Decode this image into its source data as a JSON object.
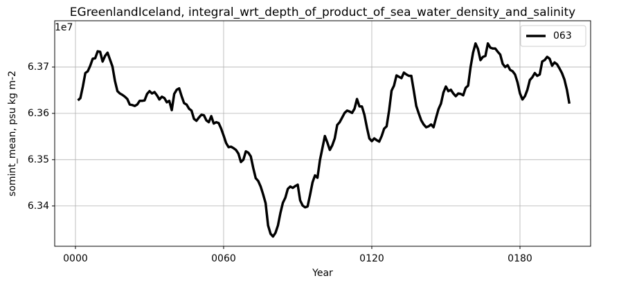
{
  "chart_data": {
    "type": "line",
    "title": "EGreenlandIceland, integral_wrt_depth_of_product_of_sea_water_density_and_salinity",
    "xlabel": "Year",
    "ylabel": "somint_mean, psu kg m-2",
    "y_offset_label": "1e7",
    "x": [
      1,
      2,
      3,
      4,
      5,
      6,
      7,
      8,
      9,
      10,
      11,
      12,
      13,
      14,
      15,
      16,
      17,
      18,
      19,
      20,
      21,
      22,
      23,
      24,
      25,
      26,
      27,
      28,
      29,
      30,
      31,
      32,
      33,
      34,
      35,
      36,
      37,
      38,
      39,
      40,
      41,
      42,
      43,
      44,
      45,
      46,
      47,
      48,
      49,
      50,
      51,
      52,
      53,
      54,
      55,
      56,
      57,
      58,
      59,
      60,
      61,
      62,
      63,
      64,
      65,
      66,
      67,
      68,
      69,
      70,
      71,
      72,
      73,
      74,
      75,
      76,
      77,
      78,
      79,
      80,
      81,
      82,
      83,
      84,
      85,
      86,
      87,
      88,
      89,
      90,
      91,
      92,
      93,
      94,
      95,
      96,
      97,
      98,
      99,
      100,
      101,
      102,
      103,
      104,
      105,
      106,
      107,
      108,
      109,
      110,
      111,
      112,
      113,
      114,
      115,
      116,
      117,
      118,
      119,
      120,
      121,
      122,
      123,
      124,
      125,
      126,
      127,
      128,
      129,
      130,
      131,
      132,
      133,
      134,
      135,
      136,
      137,
      138,
      139,
      140,
      141,
      142,
      143,
      144,
      145,
      146,
      147,
      148,
      149,
      150,
      151,
      152,
      153,
      154,
      155,
      156,
      157,
      158,
      159,
      160,
      161,
      162,
      163,
      164,
      165,
      166,
      167,
      168,
      169,
      170,
      171,
      172,
      173,
      174,
      175,
      176,
      177,
      178,
      179,
      180,
      181,
      182,
      183,
      184,
      185,
      186,
      187,
      188,
      189,
      190,
      191,
      192,
      193,
      194,
      195,
      196,
      197,
      198,
      199,
      200
    ],
    "series": [
      {
        "name": "063",
        "color": "#000000",
        "values": [
          6.3628,
          6.3633,
          6.3658,
          6.3687,
          6.3691,
          6.3703,
          6.3718,
          6.3719,
          6.3734,
          6.3733,
          6.3712,
          6.3724,
          6.3731,
          6.3716,
          6.3701,
          6.367,
          6.3648,
          6.3643,
          6.364,
          6.3636,
          6.3631,
          6.3619,
          6.3618,
          6.3616,
          6.3619,
          6.3627,
          6.3627,
          6.3628,
          6.3642,
          6.3648,
          6.3643,
          6.3646,
          6.3639,
          6.363,
          6.3636,
          6.3633,
          6.3624,
          6.3627,
          6.3607,
          6.3642,
          6.3651,
          6.3654,
          6.3637,
          6.3622,
          6.3619,
          6.361,
          6.3606,
          6.3588,
          6.3584,
          6.3591,
          6.3597,
          6.3596,
          6.3585,
          6.3581,
          6.3594,
          6.3578,
          6.3581,
          6.3579,
          6.3567,
          6.3552,
          6.3536,
          6.3527,
          6.3528,
          6.3525,
          6.3521,
          6.3513,
          6.3495,
          6.35,
          6.3518,
          6.3515,
          6.3507,
          6.3482,
          6.346,
          6.3454,
          6.3442,
          6.3425,
          6.3406,
          6.3358,
          6.334,
          6.3334,
          6.3342,
          6.3358,
          6.3385,
          6.3407,
          6.3418,
          6.3437,
          6.3442,
          6.3439,
          6.3443,
          6.3446,
          6.3412,
          6.3401,
          6.3397,
          6.3399,
          6.3424,
          6.3451,
          6.3466,
          6.3461,
          6.3499,
          6.3525,
          6.3551,
          6.3537,
          6.3521,
          6.3531,
          6.3546,
          6.3575,
          6.3581,
          6.3591,
          6.3601,
          6.3606,
          6.3604,
          6.3601,
          6.361,
          6.3631,
          6.3615,
          6.3615,
          6.3597,
          6.357,
          6.3546,
          6.354,
          6.3546,
          6.3542,
          6.3539,
          6.3551,
          6.3567,
          6.3572,
          6.3606,
          6.3649,
          6.366,
          6.3682,
          6.3679,
          6.3676,
          6.3688,
          6.3684,
          6.3681,
          6.3681,
          6.3649,
          6.3616,
          6.36,
          6.3585,
          6.3576,
          6.357,
          6.3572,
          6.3576,
          6.357,
          6.359,
          6.3609,
          6.3621,
          6.3645,
          6.3658,
          6.3648,
          6.3651,
          6.3643,
          6.3637,
          6.3643,
          6.3642,
          6.3639,
          6.3655,
          6.366,
          6.37,
          6.3731,
          6.3751,
          6.3739,
          6.3715,
          6.3722,
          6.3724,
          6.3751,
          6.3742,
          6.374,
          6.374,
          6.3733,
          6.3727,
          6.3707,
          6.37,
          6.3704,
          6.3694,
          6.3691,
          6.3684,
          6.3667,
          6.3643,
          6.363,
          6.3637,
          6.3651,
          6.3672,
          6.3678,
          6.3687,
          6.3681,
          6.3684,
          6.3712,
          6.3715,
          6.3722,
          6.3718,
          6.3703,
          6.371,
          6.3706,
          6.3697,
          6.3687,
          6.3673,
          6.3651,
          6.3621
        ]
      }
    ],
    "xlim": [
      -8.4,
      208.6
    ],
    "ylim": [
      6.3313,
      6.38
    ],
    "xticks": [
      {
        "value": 0,
        "label": "0000"
      },
      {
        "value": 60,
        "label": "0060"
      },
      {
        "value": 120,
        "label": "0120"
      },
      {
        "value": 180,
        "label": "0180"
      }
    ],
    "yticks": [
      6.34,
      6.35,
      6.36,
      6.37
    ],
    "grid": true,
    "legend": "upper right"
  }
}
